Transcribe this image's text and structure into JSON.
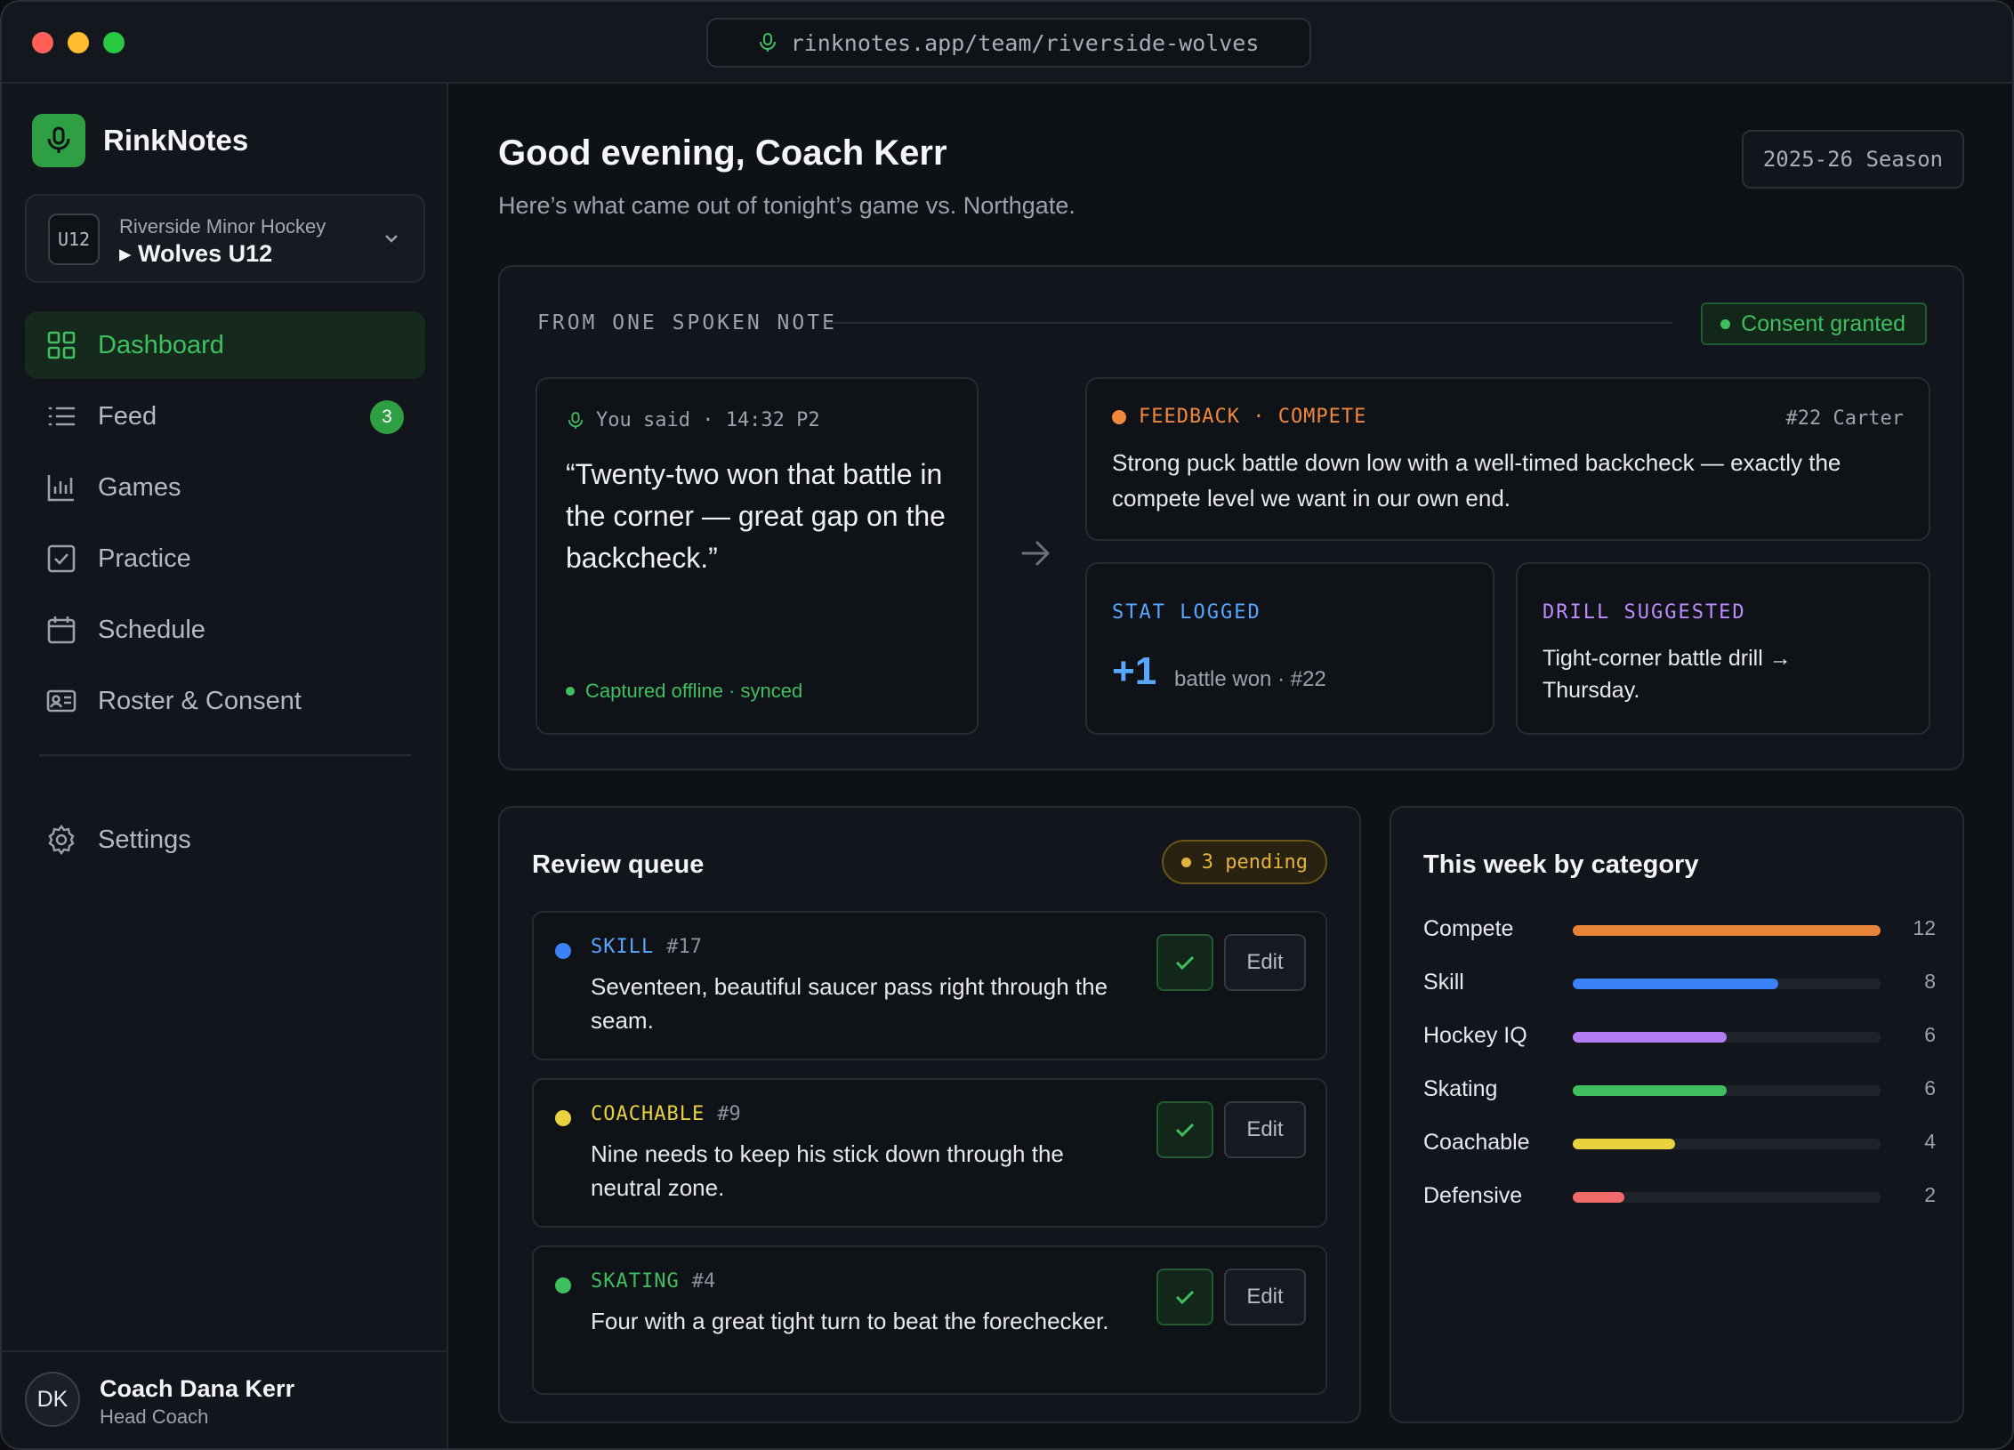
{
  "browser": {
    "url": "rinknotes.app/team/riverside-wolves"
  },
  "app": {
    "name": "RinkNotes"
  },
  "team": {
    "badge": "U12",
    "org": "Riverside Minor Hockey",
    "name": "▸ Wolves U12"
  },
  "nav": {
    "items": [
      {
        "label": "Dashboard",
        "icon": "grid-icon",
        "active": true
      },
      {
        "label": "Feed",
        "icon": "list-icon",
        "badge": "3"
      },
      {
        "label": "Games",
        "icon": "bar-chart-icon"
      },
      {
        "label": "Practice",
        "icon": "checkbox-icon"
      },
      {
        "label": "Schedule",
        "icon": "calendar-icon"
      },
      {
        "label": "Roster & Consent",
        "icon": "id-card-icon"
      }
    ],
    "settings": {
      "label": "Settings",
      "icon": "gear-icon"
    }
  },
  "user": {
    "initials": "DK",
    "name": "Coach Dana Kerr",
    "role": "Head Coach"
  },
  "header": {
    "greeting": "Good evening, Coach Kerr",
    "subtitle": "Here’s what came out of tonight’s game vs. Northgate.",
    "season": "2025-26 Season"
  },
  "note": {
    "heading": "FROM ONE SPOKEN NOTE",
    "consent": "Consent granted",
    "said_meta": "You said · 14:32 P2",
    "quote": "“Twenty-two won that battle in the corner — great gap on the backcheck.”",
    "sync_status": "Captured offline · synced",
    "feedback": {
      "tag": "FEEDBACK · COMPETE",
      "player": "#22 Carter",
      "text": "Strong puck battle down low with a well-timed backcheck — exactly the compete level we want in our own end."
    },
    "stat": {
      "tag": "STAT LOGGED",
      "value": "+1",
      "label": "battle won · #22"
    },
    "drill": {
      "tag": "DRILL SUGGESTED",
      "text": "Tight-corner battle drill → Thursday."
    }
  },
  "review": {
    "title": "Review queue",
    "pending": "3 pending",
    "edit_label": "Edit",
    "items": [
      {
        "category": "SKILL",
        "player": "#17",
        "text": "Seventeen, beautiful saucer pass right through the seam.",
        "color": "#3b82f6"
      },
      {
        "category": "COACHABLE",
        "player": "#9",
        "text": "Nine needs to keep his stick down through the neutral zone.",
        "color": "#e8d33f"
      },
      {
        "category": "SKATING",
        "player": "#4",
        "text": "Four with a great tight turn to beat the forechecker.",
        "color": "#3fbf5f"
      }
    ]
  },
  "week": {
    "title": "This week by category",
    "max": 12,
    "rows": [
      {
        "label": "Compete",
        "value": 12,
        "color": "#e8833a"
      },
      {
        "label": "Skill",
        "value": 8,
        "color": "#3b82f6"
      },
      {
        "label": "Hockey IQ",
        "value": 6,
        "color": "#b57cf5"
      },
      {
        "label": "Skating",
        "value": 6,
        "color": "#3fbf5f"
      },
      {
        "label": "Coachable",
        "value": 4,
        "color": "#e8d33f"
      },
      {
        "label": "Defensive",
        "value": 2,
        "color": "#f06a6a"
      }
    ]
  }
}
